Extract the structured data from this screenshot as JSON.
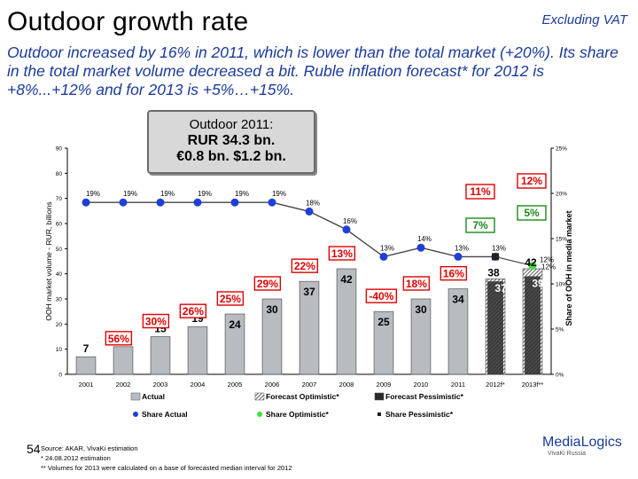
{
  "title": "Outdoor growth rate",
  "excluding": "Excluding VAT",
  "subtitle": "Outdoor increased by 16% in 2011, which is lower than the total market (+20%). Its share in the total market volume decreased a bit. Ruble inflation forecast* for 2012 is +8%...+12% and for 2013 is +5%…+15%.",
  "callout": {
    "line1": "Outdoor 2011:",
    "line2": "RUR 34.3 bn.",
    "line3": "€0.8 bn. $1.2 bn."
  },
  "page_number": "54",
  "source": [
    "Source: AKAR, VivaKi estimation",
    "* 24.08.2012 estimation",
    "** Volumes for 2013 were calculated on a base of forecasted median interval for 2012"
  ],
  "logo": {
    "name": "MediaLogics",
    "sub": "VivaKi Russia"
  },
  "colors": {
    "actual_bar": "#b8bcc0",
    "pessimistic_bar": "#2a2a2a",
    "share_actual": "#1f3fd8",
    "share_optimistic": "#3ee03e",
    "growth_box": "#e00000",
    "growth_pessimistic_box": "#1a8a1a"
  },
  "chart_data": {
    "type": "bar",
    "xlabel": "",
    "ylabel": "OOH market volume - RUR, billions",
    "y2label": "Share of OOH in media market",
    "ylim": [
      0,
      90
    ],
    "y2lim": [
      "0%",
      "25%"
    ],
    "yticks": [
      0,
      10,
      20,
      30,
      40,
      50,
      60,
      70,
      80,
      90
    ],
    "y2ticks": [
      "0%",
      "5%",
      "10%",
      "15%",
      "20%",
      "25%"
    ],
    "categories": [
      "2001",
      "2002",
      "2003",
      "2004",
      "2005",
      "2006",
      "2007",
      "2008",
      "2009",
      "2010",
      "2011",
      "2012f*",
      "2013f**"
    ],
    "series": [
      {
        "name": "Actual",
        "values": [
          7,
          11,
          15,
          19,
          24,
          30,
          37,
          42,
          25,
          30,
          34,
          null,
          null
        ]
      },
      {
        "name": "Forecast Optimistic*",
        "values": [
          null,
          null,
          null,
          null,
          null,
          null,
          null,
          null,
          null,
          null,
          null,
          38,
          42
        ]
      },
      {
        "name": "Forecast Pessimistic*",
        "values": [
          null,
          null,
          null,
          null,
          null,
          null,
          null,
          null,
          null,
          null,
          null,
          37,
          39
        ]
      }
    ],
    "growth_labels": [
      "",
      "56%",
      "30%",
      "26%",
      "25%",
      "29%",
      "22%",
      "13%",
      "-40%",
      "18%",
      "16%",
      "",
      ""
    ],
    "forecast_growth": {
      "optimistic": [
        "11%",
        "12%"
      ],
      "pessimistic": [
        "7%",
        "5%"
      ]
    },
    "share_series": [
      {
        "name": "Share Actual",
        "values": [
          19,
          19,
          19,
          19,
          19,
          19,
          18,
          16,
          13,
          14,
          13,
          13,
          null
        ],
        "labels": [
          "19%",
          "19%",
          "19%",
          "19%",
          "19%",
          "19%",
          "18%",
          "16%",
          "13%",
          "14%",
          "13%",
          "13%",
          ""
        ]
      },
      {
        "name": "Share Optimistic*",
        "values": [
          null,
          null,
          null,
          null,
          null,
          null,
          null,
          null,
          null,
          null,
          null,
          null,
          12
        ],
        "labels": [
          "",
          "",
          "",
          "",
          "",
          "",
          "",
          "",
          "",
          "",
          "",
          "",
          "12%"
        ]
      },
      {
        "name": "Share Pessimistic*",
        "values": [
          null,
          null,
          null,
          null,
          null,
          null,
          null,
          null,
          null,
          null,
          null,
          13,
          12
        ],
        "labels": [
          "",
          "",
          "",
          "",
          "",
          "",
          "",
          "",
          "",
          "",
          "",
          "",
          "12%"
        ]
      }
    ],
    "legend": [
      "Actual",
      "Forecast Optimistic*",
      "Forecast Pessimistic*",
      "Share Actual",
      "Share Optimistic*",
      "Share Pessimistic*"
    ],
    "legend_position": "bottom"
  }
}
